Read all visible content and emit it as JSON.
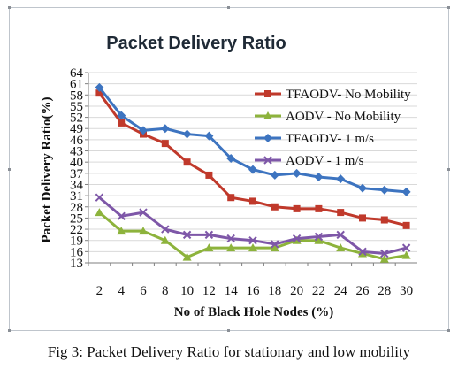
{
  "caption": "Fig 3: Packet Delivery Ratio for stationary and low mobility",
  "chart_data": {
    "type": "line",
    "title": "Packet Delivery Ratio",
    "xlabel": "No of Black Hole Nodes (%)",
    "ylabel": "Packet Delivery Ratio(%)",
    "x": [
      2,
      4,
      6,
      8,
      10,
      12,
      14,
      16,
      18,
      20,
      22,
      24,
      26,
      28,
      30
    ],
    "x_ticks": [
      "2",
      "4",
      "6",
      "8",
      "10",
      "12",
      "14",
      "16",
      "18",
      "20",
      "22",
      "24",
      "26",
      "28",
      "30"
    ],
    "y_ticks": [
      "13",
      "16",
      "19",
      "22",
      "25",
      "28",
      "31",
      "34",
      "37",
      "40",
      "43",
      "46",
      "49",
      "52",
      "55",
      "58",
      "61",
      "64"
    ],
    "ylim": [
      13,
      64
    ],
    "grid": true,
    "legend_position": "upper-right",
    "series": [
      {
        "name": "TFAODV- No Mobility",
        "color": "#c0392b",
        "marker": "square",
        "values": [
          58.5,
          50.5,
          47.5,
          45,
          40,
          36.5,
          30.5,
          29.5,
          28,
          27.5,
          27.5,
          26.5,
          25,
          24.5,
          23
        ]
      },
      {
        "name": "AODV - No Mobility",
        "color": "#8db33c",
        "marker": "triangle",
        "values": [
          26.5,
          21.5,
          21.5,
          19,
          14.5,
          17,
          17,
          17,
          17,
          19,
          19,
          17,
          15.5,
          14,
          15
        ]
      },
      {
        "name": "TFAODV- 1 m/s",
        "color": "#3d74c0",
        "marker": "diamond",
        "values": [
          60,
          52.5,
          48.5,
          49,
          47.5,
          47,
          41,
          38,
          36.5,
          37,
          36,
          35.5,
          33,
          32.5,
          32
        ]
      },
      {
        "name": "AODV -  1 m/s",
        "color": "#7e57a8",
        "marker": "x",
        "values": [
          30.5,
          25.5,
          26.5,
          22,
          20.5,
          20.5,
          19.5,
          19,
          18,
          19.5,
          20,
          20.5,
          16,
          15.5,
          17
        ]
      }
    ]
  }
}
